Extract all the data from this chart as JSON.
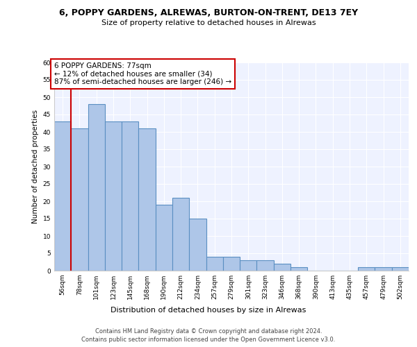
{
  "title1": "6, POPPY GARDENS, ALREWAS, BURTON-ON-TRENT, DE13 7EY",
  "title2": "Size of property relative to detached houses in Alrewas",
  "xlabel": "Distribution of detached houses by size in Alrewas",
  "ylabel": "Number of detached properties",
  "annotation_line1": "6 POPPY GARDENS: 77sqm",
  "annotation_line2": "← 12% of detached houses are smaller (34)",
  "annotation_line3": "87% of semi-detached houses are larger (246) →",
  "categories": [
    "56sqm",
    "78sqm",
    "101sqm",
    "123sqm",
    "145sqm",
    "168sqm",
    "190sqm",
    "212sqm",
    "234sqm",
    "257sqm",
    "279sqm",
    "301sqm",
    "323sqm",
    "346sqm",
    "368sqm",
    "390sqm",
    "413sqm",
    "435sqm",
    "457sqm",
    "479sqm",
    "502sqm"
  ],
  "values": [
    43,
    41,
    48,
    43,
    43,
    41,
    19,
    21,
    15,
    4,
    4,
    3,
    3,
    2,
    1,
    0,
    0,
    0,
    1,
    1,
    1
  ],
  "bar_color": "#aec6e8",
  "bar_edge_color": "#5a8fc2",
  "vline_x": 0.5,
  "vline_color": "#cc0000",
  "annotation_box_color": "#cc0000",
  "background_color": "#eef2ff",
  "ylim": [
    0,
    60
  ],
  "yticks": [
    0,
    5,
    10,
    15,
    20,
    25,
    30,
    35,
    40,
    45,
    50,
    55,
    60
  ],
  "footer1": "Contains HM Land Registry data © Crown copyright and database right 2024.",
  "footer2": "Contains public sector information licensed under the Open Government Licence v3.0."
}
